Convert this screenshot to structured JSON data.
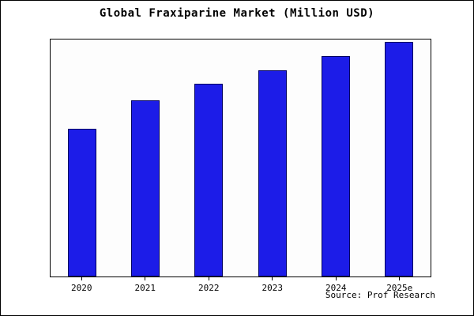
{
  "figure": {
    "source": "Source: Prof Research"
  },
  "chart_data": {
    "type": "bar",
    "title": "Global Fraxiparine Market (Million USD)",
    "categories": [
      "2020",
      "2021",
      "2022",
      "2023",
      "2024",
      "2025e"
    ],
    "values": [
      63,
      75,
      82,
      88,
      94,
      100
    ],
    "xlabel": "",
    "ylabel": "",
    "ylim": [
      0,
      101
    ],
    "grid": false,
    "legend": false,
    "bar_color": "#1c1ce8",
    "bar_border_color": "#000060",
    "axis_color": "#000000"
  }
}
